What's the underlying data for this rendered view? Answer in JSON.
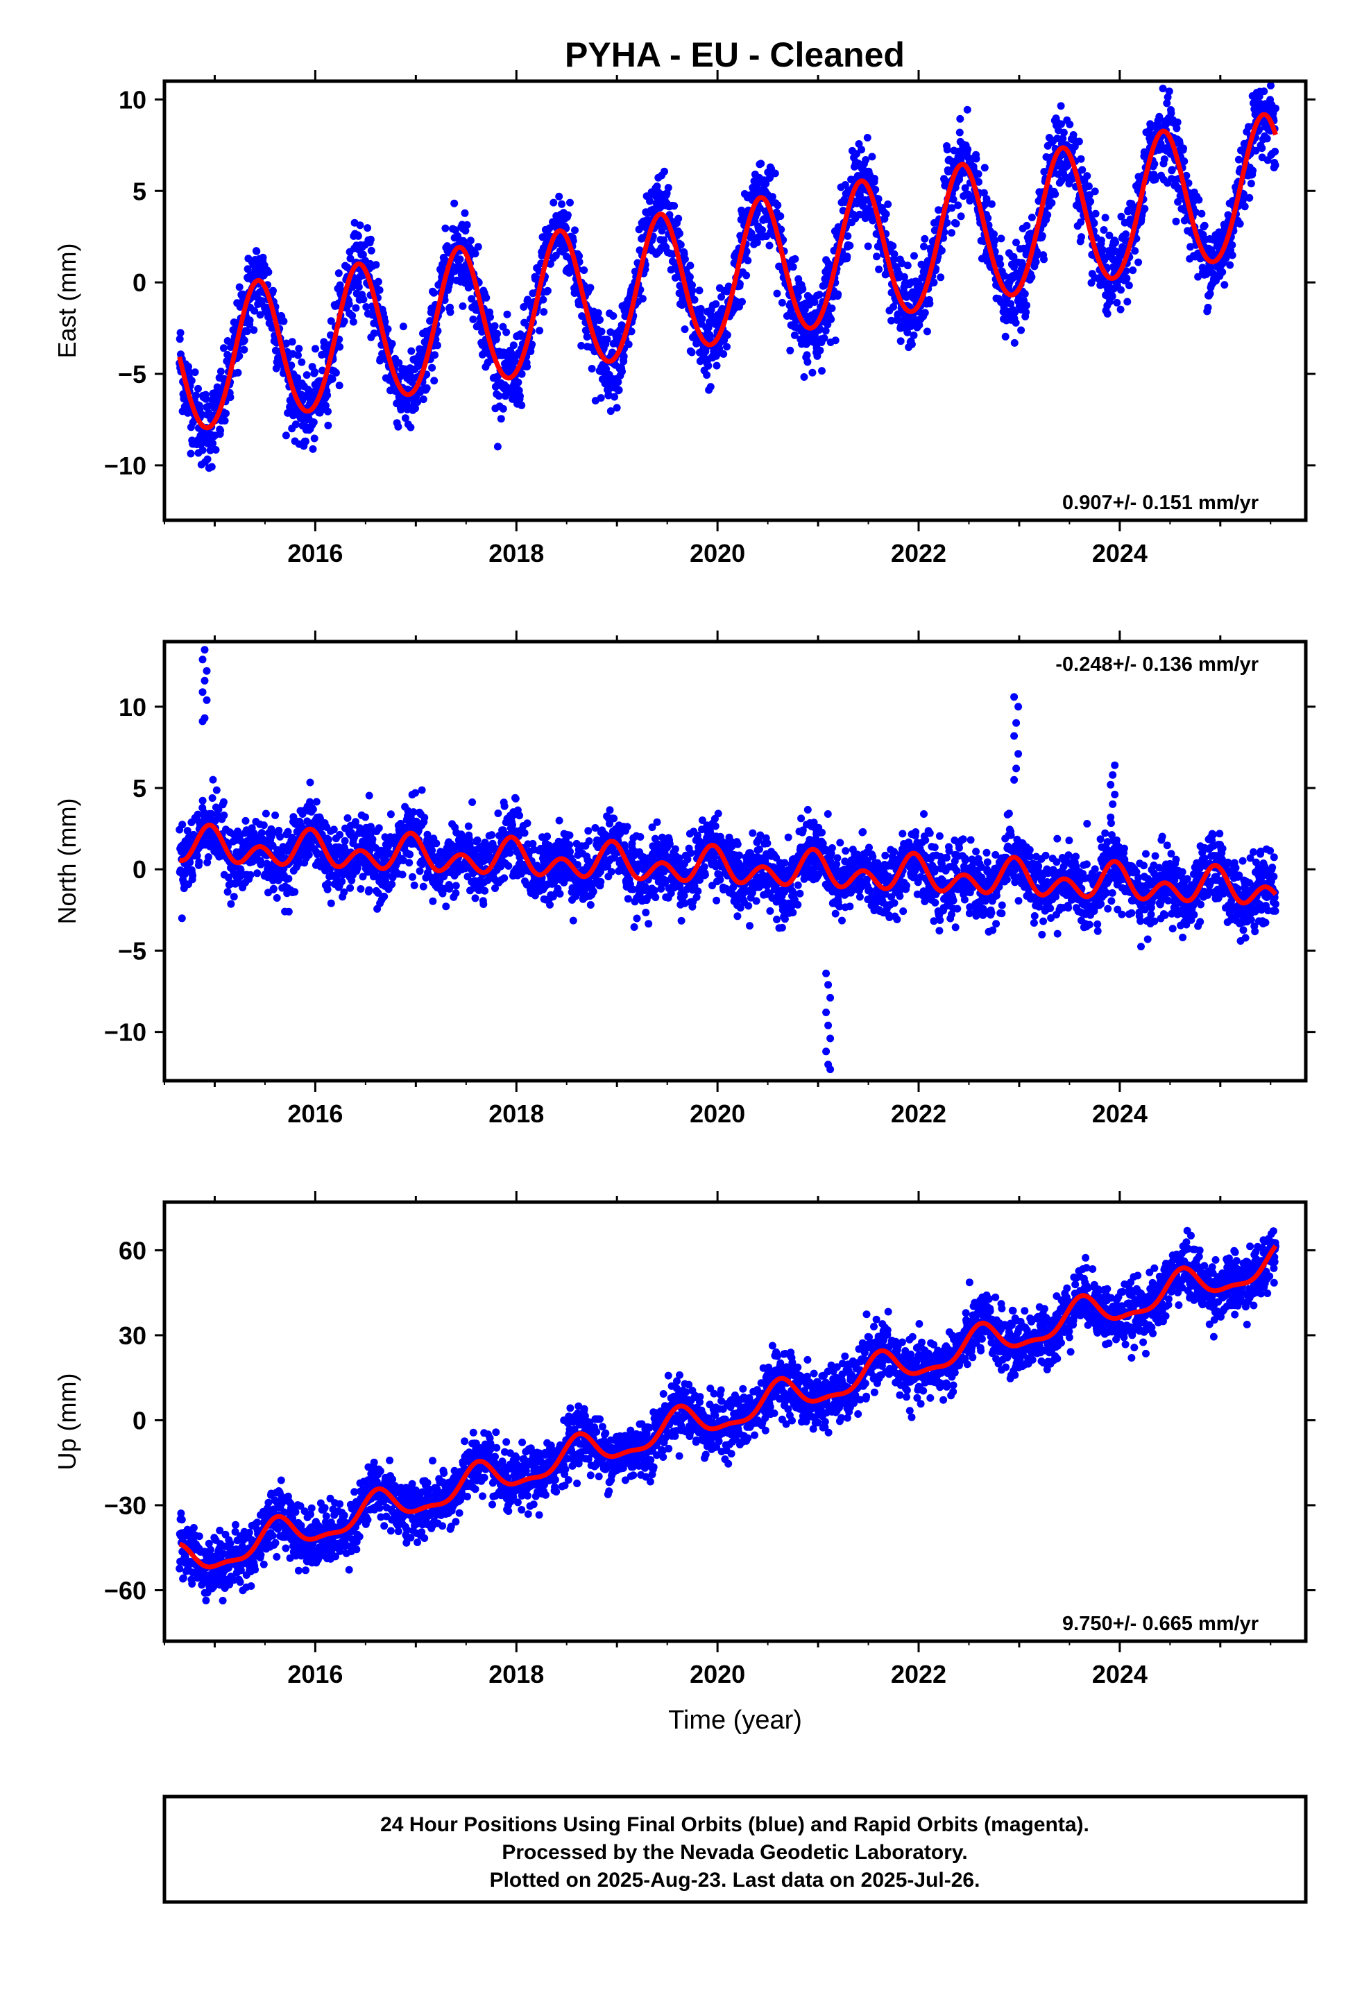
{
  "chart_data": [
    {
      "type": "scatter",
      "title": "PYHA  - EU - Cleaned",
      "xlabel": "",
      "ylabel": "East (mm)",
      "xlim": [
        2014.5,
        2025.85
      ],
      "ylim": [
        -13,
        11
      ],
      "xticks": [
        2016,
        2018,
        2020,
        2022,
        2024
      ],
      "yticks": [
        10,
        5,
        0,
        -5,
        -10
      ],
      "grid": false,
      "rate_label": "0.907+/- 0.151 mm/yr",
      "rate_position": "bottom-right",
      "model": {
        "start": 2014.65,
        "end": 2025.55,
        "offset": -4.6,
        "trend": 0.907,
        "annual": 3.8,
        "semiannual": 0.2,
        "phase": 2015.43
      },
      "scatter": {
        "noise": 1.1,
        "count": 3600
      },
      "series": [
        {
          "name": "Final Orbits",
          "style": "points",
          "color": "#0000ff"
        },
        {
          "name": "Model",
          "style": "line",
          "color": "#ff0000"
        }
      ]
    },
    {
      "type": "scatter",
      "title": "",
      "xlabel": "",
      "ylabel": "North (mm)",
      "xlim": [
        2014.5,
        2025.85
      ],
      "ylim": [
        -13,
        14
      ],
      "xticks": [
        2016,
        2018,
        2020,
        2022,
        2024
      ],
      "yticks": [
        10,
        5,
        0,
        -5,
        -10
      ],
      "grid": false,
      "rate_label": "-0.248+/- 0.136 mm/yr",
      "rate_position": "top-right",
      "model": {
        "start": 2014.65,
        "end": 2025.55,
        "offset": 1.4,
        "trend": -0.248,
        "annual": 0.6,
        "semiannual": 0.8,
        "phase": 2014.95
      },
      "scatter": {
        "noise": 1.05,
        "count": 3600
      },
      "outliers": [
        {
          "x": 2014.9,
          "y": [
            9.1,
            9.3,
            10.4,
            10.9,
            11.6,
            12.2,
            12.9,
            13.5
          ]
        },
        {
          "x": 2021.1,
          "y": [
            -6.4,
            -7.1,
            -7.9,
            -8.8,
            -9.6,
            -10.4,
            -11.2,
            -12.0,
            -12.3
          ]
        },
        {
          "x": 2022.97,
          "y": [
            5.5,
            6.2,
            7.1,
            8.2,
            9.0,
            10.0,
            10.6
          ]
        },
        {
          "x": 2023.93,
          "y": [
            3.2,
            4.0,
            4.6,
            5.2,
            5.8,
            6.4
          ]
        }
      ],
      "series": [
        {
          "name": "Final Orbits",
          "style": "points",
          "color": "#0000ff"
        },
        {
          "name": "Model",
          "style": "line",
          "color": "#ff0000"
        }
      ]
    },
    {
      "type": "scatter",
      "title": "",
      "xlabel": "Time (year)",
      "ylabel": "Up (mm)",
      "xlim": [
        2014.5,
        2025.85
      ],
      "ylim": [
        -78,
        77
      ],
      "xticks": [
        2016,
        2018,
        2020,
        2022,
        2024
      ],
      "yticks": [
        60,
        30,
        0,
        -30,
        -60
      ],
      "grid": false,
      "rate_label": "9.750+/- 0.665 mm/yr",
      "rate_position": "bottom-right",
      "model": {
        "start": 2014.65,
        "end": 2025.55,
        "offset": -51.0,
        "trend": 9.75,
        "annual": 5.5,
        "semiannual": 2.0,
        "phase": 2015.62
      },
      "scatter": {
        "noise": 5.2,
        "count": 3600
      },
      "series": [
        {
          "name": "Final Orbits",
          "style": "points",
          "color": "#0000ff"
        },
        {
          "name": "Model",
          "style": "line",
          "color": "#ff0000"
        }
      ]
    }
  ],
  "footer": {
    "line1": "24 Hour Positions Using Final Orbits (blue) and Rapid Orbits (magenta).",
    "line2": "Processed by the Nevada Geodetic Laboratory.",
    "line3": "Plotted on 2025-Aug-23. Last data on 2025-Jul-26."
  }
}
